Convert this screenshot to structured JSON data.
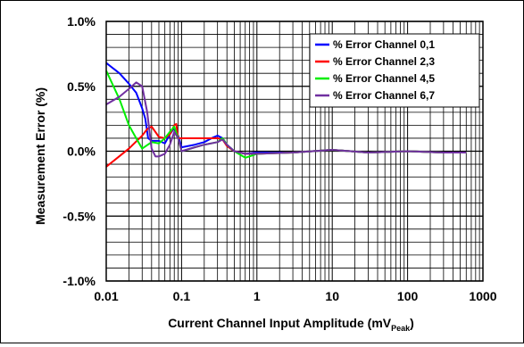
{
  "chart_data": {
    "type": "line",
    "title": "",
    "xlabel": "Current Channel Input Amplitude (mV",
    "xlabel_subscript": "Peak",
    "xlabel_suffix": ")",
    "ylabel": "Measurement Error (%)",
    "x_scale": "log",
    "xlim": [
      0.01,
      1000
    ],
    "ylim": [
      -1.0,
      1.0
    ],
    "x_ticks": [
      0.01,
      0.1,
      1,
      10,
      100,
      1000
    ],
    "x_tick_labels": [
      "0.01",
      "0.1",
      "1",
      "10",
      "100",
      "1000"
    ],
    "y_ticks": [
      1.0,
      0.5,
      0.0,
      -0.5,
      -1.0
    ],
    "y_tick_labels": [
      "1.0%",
      "0.5%",
      "0.0%",
      "-0.5%",
      "-1.0%"
    ],
    "grid": true,
    "legend_position": "top-right",
    "series": [
      {
        "name": "% Error Channel 0,1",
        "color": "#0000ff",
        "points": [
          [
            0.01,
            0.68
          ],
          [
            0.015,
            0.6
          ],
          [
            0.02,
            0.52
          ],
          [
            0.025,
            0.45
          ],
          [
            0.03,
            0.33
          ],
          [
            0.033,
            0.25
          ],
          [
            0.036,
            0.1
          ],
          [
            0.04,
            0.08
          ],
          [
            0.05,
            0.08
          ],
          [
            0.06,
            0.06
          ],
          [
            0.07,
            0.13
          ],
          [
            0.08,
            0.18
          ],
          [
            0.09,
            0.12
          ],
          [
            0.1,
            0.03
          ],
          [
            0.15,
            0.05
          ],
          [
            0.2,
            0.07
          ],
          [
            0.25,
            0.1
          ],
          [
            0.3,
            0.12
          ],
          [
            0.35,
            0.1
          ],
          [
            0.4,
            0.05
          ],
          [
            0.5,
            0.0
          ],
          [
            0.7,
            -0.02
          ],
          [
            1,
            -0.01
          ],
          [
            3,
            -0.01
          ],
          [
            10,
            0.01
          ],
          [
            30,
            -0.01
          ],
          [
            100,
            0.0
          ],
          [
            300,
            -0.01
          ],
          [
            600,
            -0.01
          ]
        ]
      },
      {
        "name": "% Error Channel 2,3",
        "color": "#ff0000",
        "points": [
          [
            0.01,
            -0.12
          ],
          [
            0.02,
            0.02
          ],
          [
            0.03,
            0.12
          ],
          [
            0.035,
            0.17
          ],
          [
            0.04,
            0.19
          ],
          [
            0.05,
            0.11
          ],
          [
            0.06,
            0.1
          ],
          [
            0.07,
            0.13
          ],
          [
            0.08,
            0.2
          ],
          [
            0.085,
            0.21
          ],
          [
            0.09,
            0.1
          ],
          [
            0.15,
            0.1
          ],
          [
            0.25,
            0.1
          ],
          [
            0.3,
            0.1
          ],
          [
            0.35,
            0.09
          ],
          [
            0.4,
            0.04
          ],
          [
            0.5,
            0.0
          ],
          [
            0.7,
            -0.02
          ],
          [
            1,
            -0.02
          ],
          [
            3,
            -0.01
          ],
          [
            10,
            0.01
          ],
          [
            30,
            -0.01
          ],
          [
            100,
            0.0
          ],
          [
            300,
            -0.01
          ],
          [
            600,
            -0.01
          ]
        ]
      },
      {
        "name": "% Error Channel 4,5",
        "color": "#00ee00",
        "points": [
          [
            0.01,
            0.62
          ],
          [
            0.015,
            0.4
          ],
          [
            0.02,
            0.2
          ],
          [
            0.025,
            0.1
          ],
          [
            0.03,
            0.02
          ],
          [
            0.04,
            0.07
          ],
          [
            0.05,
            0.06
          ],
          [
            0.06,
            0.1
          ],
          [
            0.07,
            0.15
          ],
          [
            0.08,
            0.19
          ],
          [
            0.09,
            0.1
          ],
          [
            0.1,
            0.0
          ],
          [
            0.15,
            0.03
          ],
          [
            0.2,
            0.05
          ],
          [
            0.3,
            0.07
          ],
          [
            0.35,
            0.1
          ],
          [
            0.4,
            0.05
          ],
          [
            0.5,
            0.0
          ],
          [
            0.7,
            -0.05
          ],
          [
            0.8,
            -0.04
          ],
          [
            1,
            -0.02
          ],
          [
            3,
            -0.01
          ],
          [
            10,
            0.01
          ],
          [
            30,
            -0.01
          ],
          [
            100,
            0.0
          ],
          [
            300,
            -0.01
          ],
          [
            600,
            -0.01
          ]
        ]
      },
      {
        "name": "% Error Channel 6,7",
        "color": "#7030a0",
        "points": [
          [
            0.01,
            0.36
          ],
          [
            0.015,
            0.42
          ],
          [
            0.02,
            0.48
          ],
          [
            0.025,
            0.53
          ],
          [
            0.03,
            0.5
          ],
          [
            0.035,
            0.3
          ],
          [
            0.04,
            0.02
          ],
          [
            0.045,
            -0.04
          ],
          [
            0.05,
            -0.04
          ],
          [
            0.06,
            -0.02
          ],
          [
            0.07,
            0.05
          ],
          [
            0.08,
            0.15
          ],
          [
            0.09,
            0.1
          ],
          [
            0.1,
            0.0
          ],
          [
            0.15,
            0.03
          ],
          [
            0.2,
            0.05
          ],
          [
            0.3,
            0.07
          ],
          [
            0.35,
            0.09
          ],
          [
            0.4,
            0.05
          ],
          [
            0.5,
            0.0
          ],
          [
            0.7,
            -0.02
          ],
          [
            1,
            -0.02
          ],
          [
            3,
            -0.01
          ],
          [
            10,
            0.01
          ],
          [
            30,
            -0.01
          ],
          [
            100,
            0.0
          ],
          [
            300,
            -0.01
          ],
          [
            600,
            -0.01
          ]
        ]
      }
    ]
  }
}
